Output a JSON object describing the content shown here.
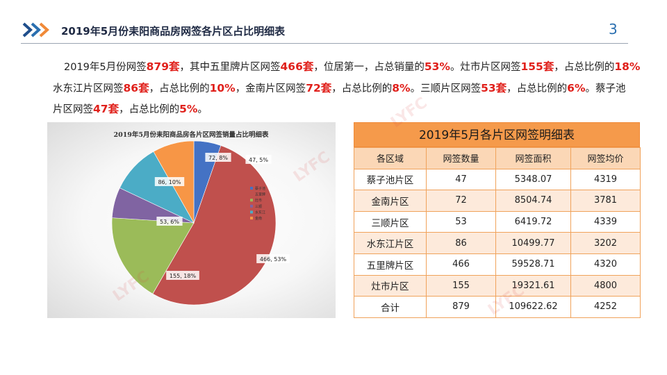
{
  "header": {
    "title": "2019年5月份耒阳商品房网签各片区占比明细表",
    "page_number": "3"
  },
  "summary": {
    "lines": [
      [
        {
          "t": "2019年5月份网签",
          "hl": false
        },
        {
          "t": "879套",
          "hl": true
        },
        {
          "t": "，其中五里牌片区网签",
          "hl": false
        },
        {
          "t": "466套",
          "hl": true
        },
        {
          "t": "，位居第一，占总销量的",
          "hl": false
        },
        {
          "t": "53%",
          "hl": true
        },
        {
          "t": "。灶市片区网签",
          "hl": false
        },
        {
          "t": "155套",
          "hl": true
        },
        {
          "t": "，占总比例的",
          "hl": false
        },
        {
          "t": "18%",
          "hl": true
        }
      ],
      [
        {
          "t": "水东江片区网签",
          "hl": false
        },
        {
          "t": "86套",
          "hl": true
        },
        {
          "t": "，占总比例的",
          "hl": false
        },
        {
          "t": "10%",
          "hl": true
        },
        {
          "t": "，金南片区网签",
          "hl": false
        },
        {
          "t": "72套",
          "hl": true
        },
        {
          "t": "，占总比例的",
          "hl": false
        },
        {
          "t": "8%",
          "hl": true
        },
        {
          "t": "。三顺片区网签",
          "hl": false
        },
        {
          "t": "53套",
          "hl": true
        },
        {
          "t": "，占总比例的",
          "hl": false
        },
        {
          "t": "6%",
          "hl": true
        },
        {
          "t": "。蔡子池",
          "hl": false
        }
      ],
      [
        {
          "t": "片区网签",
          "hl": false
        },
        {
          "t": "47套",
          "hl": true
        },
        {
          "t": "，占总比例的",
          "hl": false
        },
        {
          "t": "5%",
          "hl": true
        },
        {
          "t": "。",
          "hl": false
        }
      ]
    ],
    "highlight_color": "#e0201b"
  },
  "chart_data": {
    "type": "pie",
    "title": "2019年5月份耒阳商品房各片区网签销量占比明细表",
    "slices": [
      {
        "name": "蔡子池",
        "value": 47,
        "percent": 5,
        "label": "47, 5%",
        "color": "#4472c4"
      },
      {
        "name": "五里牌",
        "value": 466,
        "percent": 53,
        "label": "466, 53%",
        "color": "#c0504d"
      },
      {
        "name": "灶市",
        "value": 155,
        "percent": 18,
        "label": "155, 18%",
        "color": "#9bbb59"
      },
      {
        "name": "三顺",
        "value": 53,
        "percent": 6,
        "label": "53, 6%",
        "color": "#8064a2"
      },
      {
        "name": "水东江",
        "value": 86,
        "percent": 10,
        "label": "86, 10%",
        "color": "#4bacc6"
      },
      {
        "name": "金南",
        "value": 72,
        "percent": 8,
        "label": "72, 8%",
        "color": "#f79646"
      }
    ],
    "legend_position": "inside-right"
  },
  "table": {
    "title": "2019年5月各片区网签明细表",
    "headers": [
      "各区域",
      "网签数量",
      "网签面积",
      "网签均价"
    ],
    "rows": [
      [
        "蔡子池片区",
        "47",
        "5348.07",
        "4319"
      ],
      [
        "金南片区",
        "72",
        "8504.74",
        "3781"
      ],
      [
        "三顺片区",
        "53",
        "6419.72",
        "4339"
      ],
      [
        "水东江片区",
        "86",
        "10499.77",
        "3202"
      ],
      [
        "五里牌片区",
        "466",
        "59528.71",
        "4320"
      ],
      [
        "灶市片区",
        "155",
        "19321.61",
        "4800"
      ],
      [
        "合计",
        "879",
        "109622.62",
        "4252"
      ]
    ]
  },
  "colors": {
    "accent_blue": "#2a6fb0",
    "accent_orange": "#f59a4b",
    "table_border": "#f0a25a"
  },
  "icons": {
    "header_chevrons": "double-chevron-right-icon"
  }
}
